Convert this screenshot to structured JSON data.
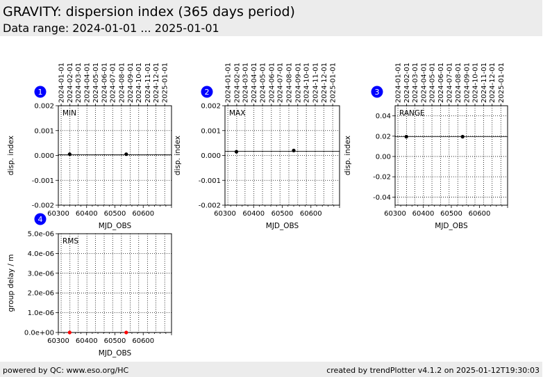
{
  "header": {
    "title": "GRAVITY: dispersion index (365 days period)",
    "subtitle": "Data range: 2024-01-01 ... 2025-01-01"
  },
  "footer": {
    "left": "powered by QC: www.eso.org/HC",
    "right": "created by trendPlotter v4.1.2 on 2025-01-12T19:30:03"
  },
  "colors": {
    "badge": "#0000ff",
    "header_bg": "#ececec",
    "point": "#000000",
    "rms_point": "#ff0000"
  },
  "chart_data": [
    {
      "type": "scatter",
      "badge": "1",
      "label": "MIN",
      "ylabel": "disp. index",
      "xlabel": "MJD_OBS",
      "xlim": [
        60300,
        60700
      ],
      "ylim": [
        -0.002,
        0.002
      ],
      "xticks": [
        "60300",
        "60400",
        "60500",
        "60600"
      ],
      "yticks": [
        "0.002",
        "0.001",
        "0.000",
        "-0.001",
        "-0.002"
      ],
      "date_ticks": [
        "2024-01-01",
        "2024-02-01",
        "2024-03-01",
        "2024-04-01",
        "2024-05-01",
        "2024-06-01",
        "2024-07-01",
        "2024-08-01",
        "2024-09-01",
        "2024-10-01",
        "2024-11-01",
        "2024-12-01",
        "2025-01-01"
      ],
      "reference_line": 3e-05,
      "points": [
        {
          "x": 60340,
          "y": 5e-05
        },
        {
          "x": 60540,
          "y": 5e-05
        }
      ]
    },
    {
      "type": "scatter",
      "badge": "2",
      "label": "MAX",
      "ylabel": "disp. index",
      "xlabel": "MJD_OBS",
      "xlim": [
        60300,
        60700
      ],
      "ylim": [
        -0.002,
        0.002
      ],
      "xticks": [
        "60300",
        "60400",
        "60500",
        "60600"
      ],
      "yticks": [
        "0.002",
        "0.001",
        "0.000",
        "-0.001",
        "-0.002"
      ],
      "date_ticks": [
        "2024-01-01",
        "2024-02-01",
        "2024-03-01",
        "2024-04-01",
        "2024-05-01",
        "2024-06-01",
        "2024-07-01",
        "2024-08-01",
        "2024-09-01",
        "2024-10-01",
        "2024-11-01",
        "2024-12-01",
        "2025-01-01"
      ],
      "reference_line": 0.00017,
      "points": [
        {
          "x": 60340,
          "y": 0.00015
        },
        {
          "x": 60540,
          "y": 0.0002
        }
      ]
    },
    {
      "type": "scatter",
      "badge": "3",
      "label": "RANGE",
      "ylabel": "disp. index",
      "xlabel": "MJD_OBS",
      "xlim": [
        60300,
        60700
      ],
      "ylim": [
        -0.048,
        0.05
      ],
      "xticks": [
        "60300",
        "60400",
        "60500",
        "60600"
      ],
      "yticks": [
        "0.04",
        "0.02",
        "0.00",
        "-0.02",
        "-0.04"
      ],
      "date_ticks": [
        "2024-01-01",
        "2024-02-01",
        "2024-03-01",
        "2024-04-01",
        "2024-05-01",
        "2024-06-01",
        "2024-07-01",
        "2024-08-01",
        "2024-09-01",
        "2024-10-01",
        "2024-11-01",
        "2024-12-01",
        "2025-01-01"
      ],
      "reference_line": 0.0195,
      "points": [
        {
          "x": 60340,
          "y": 0.0195
        },
        {
          "x": 60540,
          "y": 0.0195
        }
      ]
    },
    {
      "type": "scatter",
      "badge": "4",
      "label": "RMS",
      "ylabel": "group delay / m",
      "xlabel": "MJD_OBS",
      "xlim": [
        60300,
        60700
      ],
      "ylim": [
        0,
        5e-06
      ],
      "xticks": [
        "60300",
        "60400",
        "60500",
        "60600"
      ],
      "yticks": [
        "5.0e-06",
        "4.0e-06",
        "3.0e-06",
        "2.0e-06",
        "1.0e-06",
        "0.0e+00"
      ],
      "date_ticks": [],
      "reference_line": null,
      "points": [
        {
          "x": 60340,
          "y": 0
        },
        {
          "x": 60540,
          "y": 0
        }
      ]
    }
  ]
}
